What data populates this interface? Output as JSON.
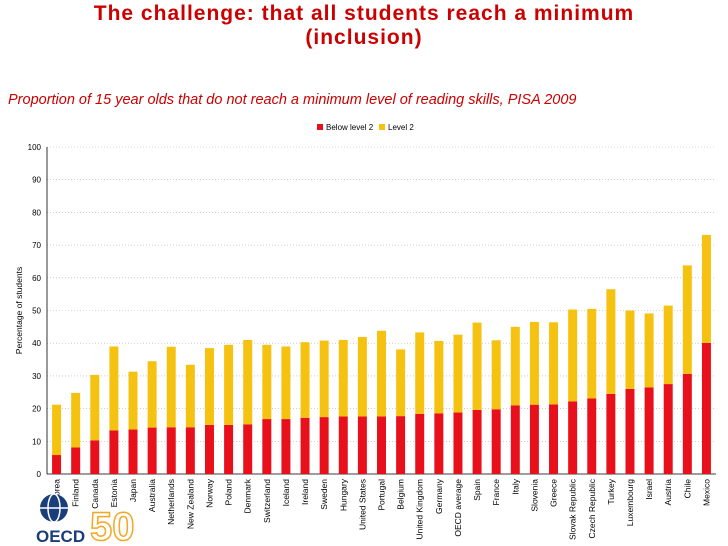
{
  "slide": {
    "title_line1": "The challenge: that all students reach a minimum",
    "title_line2": "(inclusion)",
    "subtitle": "Proportion of 15 year olds that do not reach a minimum level of reading skills, PISA 2009"
  },
  "logo": {
    "text": "OECD",
    "anniversary": "50"
  },
  "colors": {
    "below_level2": "#e8101a",
    "level2": "#f5c211",
    "title": "#cc0000",
    "grid": "#b0b0b0"
  },
  "chart_data": {
    "type": "bar",
    "stacked": true,
    "ylabel": "Percentage of students",
    "xlabel": "",
    "ylim": [
      0,
      100
    ],
    "yticks": [
      0,
      10,
      20,
      30,
      40,
      50,
      60,
      70,
      80,
      90,
      100
    ],
    "grid": true,
    "legend_position": "top",
    "categories": [
      "Korea",
      "Finland",
      "Canada",
      "Estonia",
      "Japan",
      "Australia",
      "Netherlands",
      "New Zealand",
      "Norway",
      "Poland",
      "Denmark",
      "Switzerland",
      "Iceland",
      "Ireland",
      "Sweden",
      "Hungary",
      "United States",
      "Portugal",
      "Belgium",
      "United Kingdom",
      "Germany",
      "OECD average",
      "Spain",
      "France",
      "Italy",
      "Slovenia",
      "Greece",
      "Slovak Republic",
      "Czech Republic",
      "Turkey",
      "Luxembourg",
      "Israel",
      "Austria",
      "Chile",
      "Mexico"
    ],
    "series": [
      {
        "name": "Below level 2",
        "values": [
          5.8,
          8.1,
          10.3,
          13.3,
          13.6,
          14.2,
          14.3,
          14.3,
          15.0,
          15.0,
          15.2,
          16.8,
          16.8,
          17.2,
          17.4,
          17.6,
          17.6,
          17.6,
          17.7,
          18.4,
          18.5,
          18.8,
          19.6,
          19.8,
          21.0,
          21.2,
          21.3,
          22.2,
          23.1,
          24.5,
          26.0,
          26.5,
          27.5,
          30.6,
          40.1
        ]
      },
      {
        "name": "Level 2",
        "values": [
          15.4,
          16.7,
          20.0,
          25.7,
          17.7,
          20.3,
          24.6,
          19.1,
          23.5,
          24.5,
          25.8,
          22.7,
          22.2,
          23.1,
          23.4,
          23.4,
          24.3,
          26.2,
          20.4,
          24.9,
          22.2,
          23.8,
          26.7,
          21.1,
          24.0,
          25.3,
          25.1,
          28.1,
          27.4,
          32.0,
          24.0,
          22.6,
          24.0,
          33.2,
          33.0
        ]
      }
    ]
  }
}
